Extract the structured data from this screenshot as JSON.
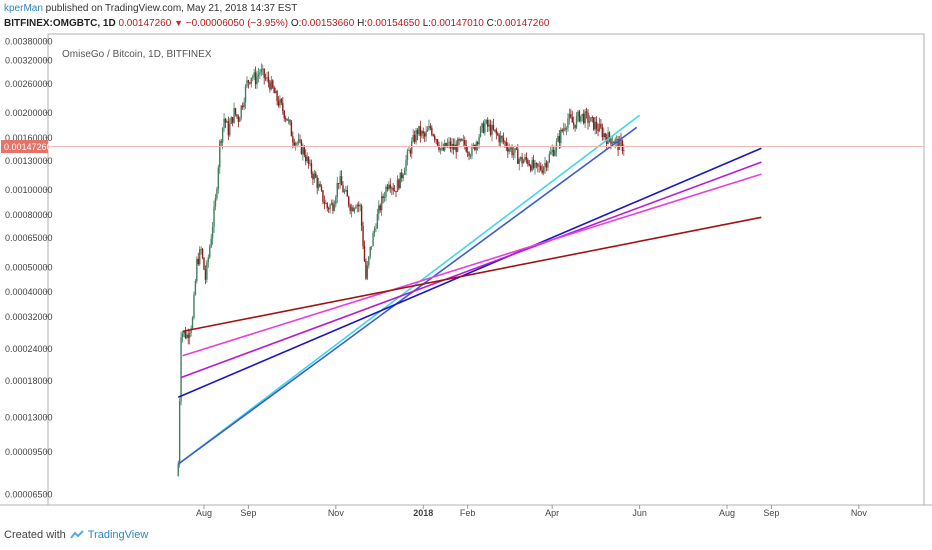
{
  "header": {
    "author": "kperMan",
    "published_text": " published on TradingView.com, May 21, 2018 14:37 EST"
  },
  "quote": {
    "symbol": "BITFINEX:OMGBTC, 1D",
    "last": "0.00147260",
    "change": "−0.00006050 (−3.95%)",
    "o_label": "O:",
    "o_value": "0.00153660",
    "h_label": "H:",
    "h_value": "0.00154650",
    "l_label": "L:",
    "l_value": "0.00147010",
    "c_label": "C:",
    "c_value": "0.00147260"
  },
  "footer": {
    "created_with": "Created with",
    "brand": "TradingView"
  },
  "colors": {
    "up_candle": "#3f7f5f",
    "down_candle": "#8b1a1a",
    "price_badge": "#e57368",
    "price_line": "#f4b8b2",
    "cyan_line": "#3fd8e8",
    "steelblue_line": "#3b5bd6",
    "blue_line": "#1a16c8",
    "purple_line": "#b61bd3",
    "magenta_line": "#e83fe0",
    "darkred_line": "#a11212"
  },
  "chart_data": {
    "type": "candlestick",
    "title": "OmiseGo / Bitcoin, 1D, BITFINEX",
    "y_scale": "log",
    "ylim": [
      6e-05,
      0.0038
    ],
    "y_ticks": [
      "0.00380000",
      "0.00320000",
      "0.00260000",
      "0.00200000",
      "0.00160000",
      "0.00130000",
      "0.00100000",
      "0.00080000",
      "0.00065000",
      "0.00050000",
      "0.00040000",
      "0.00032000",
      "0.00024000",
      "0.00018000",
      "0.00013000",
      "0.00009500",
      "0.00006500"
    ],
    "x_ticks": [
      "Aug",
      "Sep",
      "Nov",
      "2018",
      "Feb",
      "Apr",
      "Jun",
      "Aug",
      "Sep",
      "Nov"
    ],
    "last_price_label": "0.00147260",
    "last_price": 0.0014726,
    "close_path": [
      [
        "2017-07-14",
        8.5e-05
      ],
      [
        "2017-07-16",
        0.00028
      ],
      [
        "2017-07-20",
        0.00027
      ],
      [
        "2017-07-24",
        0.00031
      ],
      [
        "2017-07-27",
        0.00052
      ],
      [
        "2017-07-30",
        0.00058
      ],
      [
        "2017-08-02",
        0.00045
      ],
      [
        "2017-08-05",
        0.0006
      ],
      [
        "2017-08-09",
        0.0009
      ],
      [
        "2017-08-12",
        0.0015
      ],
      [
        "2017-08-15",
        0.0019
      ],
      [
        "2017-08-18",
        0.0017
      ],
      [
        "2017-08-22",
        0.002
      ],
      [
        "2017-08-25",
        0.0019
      ],
      [
        "2017-08-28",
        0.0022
      ],
      [
        "2017-08-31",
        0.0026
      ],
      [
        "2017-09-03",
        0.0028
      ],
      [
        "2017-09-06",
        0.0027
      ],
      [
        "2017-09-09",
        0.0029
      ],
      [
        "2017-09-13",
        0.0027
      ],
      [
        "2017-09-16",
        0.0026
      ],
      [
        "2017-09-20",
        0.0023
      ],
      [
        "2017-09-24",
        0.0021
      ],
      [
        "2017-09-28",
        0.0019
      ],
      [
        "2017-10-02",
        0.0016
      ],
      [
        "2017-10-06",
        0.0015
      ],
      [
        "2017-10-10",
        0.0014
      ],
      [
        "2017-10-14",
        0.0012
      ],
      [
        "2017-10-18",
        0.0011
      ],
      [
        "2017-10-22",
        0.00095
      ],
      [
        "2017-10-26",
        0.00085
      ],
      [
        "2017-10-30",
        0.00088
      ],
      [
        "2017-11-03",
        0.0011
      ],
      [
        "2017-11-06",
        0.001
      ],
      [
        "2017-11-09",
        0.00092
      ],
      [
        "2017-11-12",
        0.00085
      ],
      [
        "2017-11-15",
        0.0009
      ],
      [
        "2017-11-18",
        0.00085
      ],
      [
        "2017-11-20",
        0.00062
      ],
      [
        "2017-11-22",
        0.00045
      ],
      [
        "2017-11-25",
        0.00058
      ],
      [
        "2017-11-29",
        0.00075
      ],
      [
        "2017-12-03",
        0.0009
      ],
      [
        "2017-12-08",
        0.0011
      ],
      [
        "2017-12-12",
        0.001
      ],
      [
        "2017-12-16",
        0.0011
      ],
      [
        "2017-12-20",
        0.0013
      ],
      [
        "2017-12-24",
        0.0015
      ],
      [
        "2017-12-28",
        0.0017
      ],
      [
        "2018-01-02",
        0.0016
      ],
      [
        "2018-01-06",
        0.00175
      ],
      [
        "2018-01-10",
        0.0016
      ],
      [
        "2018-01-14",
        0.0014
      ],
      [
        "2018-01-18",
        0.0015
      ],
      [
        "2018-01-22",
        0.00145
      ],
      [
        "2018-01-26",
        0.0015
      ],
      [
        "2018-01-30",
        0.0015
      ],
      [
        "2018-02-04",
        0.0014
      ],
      [
        "2018-02-08",
        0.0016
      ],
      [
        "2018-02-13",
        0.0018
      ],
      [
        "2018-02-18",
        0.0017
      ],
      [
        "2018-02-23",
        0.0016
      ],
      [
        "2018-02-28",
        0.0015
      ],
      [
        "2018-03-05",
        0.0014
      ],
      [
        "2018-03-10",
        0.0013
      ],
      [
        "2018-03-15",
        0.0013
      ],
      [
        "2018-03-20",
        0.0012
      ],
      [
        "2018-03-25",
        0.00122
      ],
      [
        "2018-03-30",
        0.00135
      ],
      [
        "2018-04-04",
        0.0015
      ],
      [
        "2018-04-08",
        0.0017
      ],
      [
        "2018-04-12",
        0.0019
      ],
      [
        "2018-04-16",
        0.0018
      ],
      [
        "2018-04-20",
        0.00195
      ],
      [
        "2018-04-25",
        0.0019
      ],
      [
        "2018-04-30",
        0.0018
      ],
      [
        "2018-05-05",
        0.0017
      ],
      [
        "2018-05-09",
        0.0016
      ],
      [
        "2018-05-13",
        0.00158
      ],
      [
        "2018-05-17",
        0.0015
      ],
      [
        "2018-05-21",
        0.00147
      ]
    ],
    "trendlines": [
      {
        "color_key": "cyan_line",
        "from": [
          "2017-07-14",
          8.5e-05
        ],
        "to": [
          "2018-06-01",
          0.00195
        ]
      },
      {
        "color_key": "steelblue_line",
        "from": [
          "2017-07-14",
          8.5e-05
        ],
        "to": [
          "2018-05-30",
          0.00175
        ]
      },
      {
        "color_key": "blue_line",
        "from": [
          "2017-07-14",
          0.000155
        ],
        "to": [
          "2018-08-25",
          0.00145
        ]
      },
      {
        "color_key": "purple_line",
        "from": [
          "2017-07-16",
          0.000185
        ],
        "to": [
          "2018-08-25",
          0.00128
        ]
      },
      {
        "color_key": "magenta_line",
        "from": [
          "2017-07-17",
          0.000225
        ],
        "to": [
          "2018-08-25",
          0.00115
        ]
      },
      {
        "color_key": "darkred_line",
        "from": [
          "2017-07-17",
          0.00028
        ],
        "to": [
          "2018-08-25",
          0.00078
        ]
      }
    ]
  }
}
